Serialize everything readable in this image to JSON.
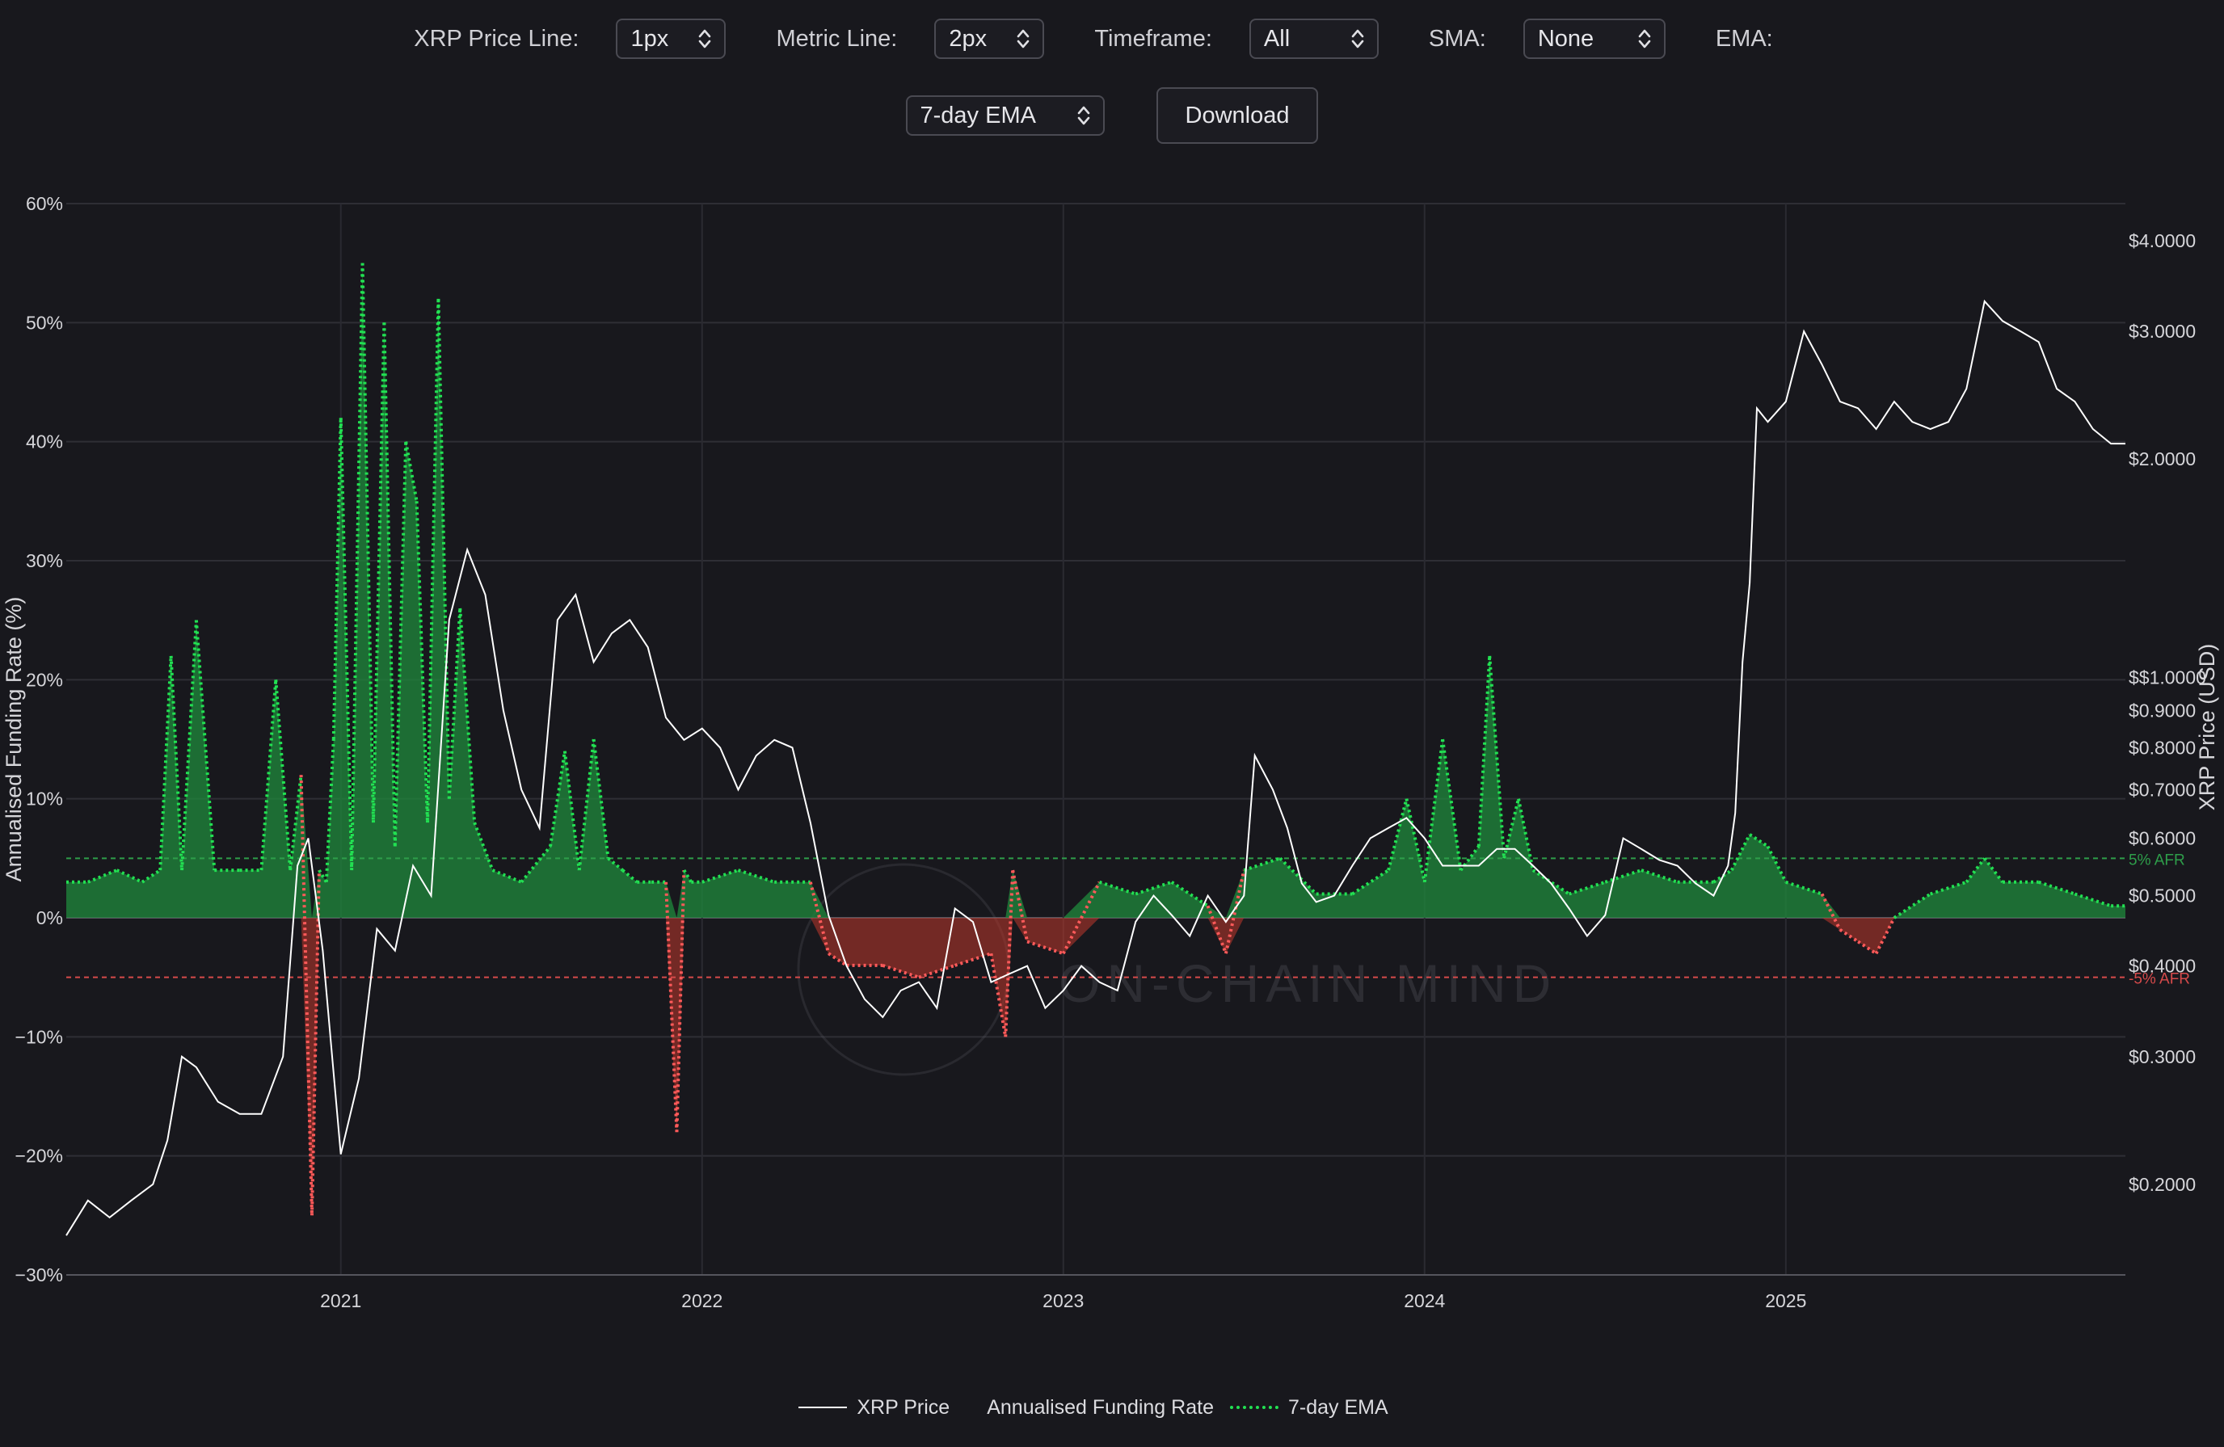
{
  "controls": {
    "price_line": {
      "label": "XRP Price Line:",
      "value": "1px"
    },
    "metric_line": {
      "label": "Metric Line:",
      "value": "2px"
    },
    "timeframe": {
      "label": "Timeframe:",
      "value": "All"
    },
    "sma": {
      "label": "SMA:",
      "value": "None"
    },
    "ema": {
      "label": "EMA:",
      "value": "7-day EMA"
    },
    "download_label": "Download"
  },
  "watermark": "ON-CHAIN MIND",
  "legend": {
    "price": "XRP Price",
    "funding": "Annualised Funding Rate",
    "ema": "7-day EMA"
  },
  "colors": {
    "price": "#ffffff",
    "funding_pos": "#1f8a3c",
    "funding_neg": "#c0392b",
    "ema_pos": "#22e052",
    "ema_neg": "#ff5a5a",
    "ref_pos": "#2e9e4a",
    "ref_neg": "#d64a4a"
  },
  "chart_data": {
    "type": "line",
    "ylabel_left": "Annualised Funding Rate (%)",
    "ylabel_right": "XRP Price (USD)",
    "x_ticks": [
      "2021",
      "2022",
      "2023",
      "2024",
      "2025"
    ],
    "x_range": [
      2020.24,
      2025.94
    ],
    "y_left_range": [
      -30,
      60
    ],
    "y_left_ticks": [
      {
        "v": 60,
        "t": "60%"
      },
      {
        "v": 50,
        "t": "50%"
      },
      {
        "v": 40,
        "t": "40%"
      },
      {
        "v": 30,
        "t": "30%"
      },
      {
        "v": 20,
        "t": "20%"
      },
      {
        "v": 10,
        "t": "10%"
      },
      {
        "v": 0,
        "t": "0%"
      },
      {
        "v": -10,
        "t": "−10%"
      },
      {
        "v": -20,
        "t": "−20%"
      },
      {
        "v": -30,
        "t": "−30%"
      }
    ],
    "y_right_scale": "log",
    "y_right_range": [
      0.15,
      4.5
    ],
    "y_right_ticks": [
      {
        "v": 4.0,
        "t": "$4.0000"
      },
      {
        "v": 3.0,
        "t": "$3.0000"
      },
      {
        "v": 2.0,
        "t": "$2.0000"
      },
      {
        "v": 1.0,
        "t": "$$1.0000"
      },
      {
        "v": 0.9,
        "t": "$0.9000"
      },
      {
        "v": 0.8,
        "t": "$0.8000"
      },
      {
        "v": 0.7,
        "t": "$0.7000"
      },
      {
        "v": 0.6,
        "t": "$0.6000"
      },
      {
        "v": 0.5,
        "t": "$0.5000"
      },
      {
        "v": 0.4,
        "t": "$0.4000"
      },
      {
        "v": 0.3,
        "t": "$0.3000"
      },
      {
        "v": 0.2,
        "t": "$0.2000"
      }
    ],
    "ref_lines": [
      {
        "v": 5,
        "label": "5% AFR"
      },
      {
        "v": -5,
        "label": "-5% AFR"
      }
    ],
    "grid": true,
    "series": [
      {
        "name": "XRP Price",
        "x": [
          2020.24,
          2020.3,
          2020.36,
          2020.42,
          2020.48,
          2020.52,
          2020.56,
          2020.6,
          2020.66,
          2020.72,
          2020.78,
          2020.84,
          2020.88,
          2020.91,
          2020.95,
          2021.0,
          2021.05,
          2021.1,
          2021.15,
          2021.2,
          2021.25,
          2021.3,
          2021.35,
          2021.4,
          2021.45,
          2021.5,
          2021.55,
          2021.6,
          2021.65,
          2021.7,
          2021.75,
          2021.8,
          2021.85,
          2021.9,
          2021.95,
          2022.0,
          2022.05,
          2022.1,
          2022.15,
          2022.2,
          2022.25,
          2022.3,
          2022.35,
          2022.4,
          2022.45,
          2022.5,
          2022.55,
          2022.6,
          2022.65,
          2022.7,
          2022.75,
          2022.8,
          2022.85,
          2022.9,
          2022.95,
          2023.0,
          2023.05,
          2023.1,
          2023.15,
          2023.2,
          2023.25,
          2023.3,
          2023.35,
          2023.4,
          2023.45,
          2023.5,
          2023.53,
          2023.58,
          2023.62,
          2023.66,
          2023.7,
          2023.75,
          2023.8,
          2023.85,
          2023.9,
          2023.95,
          2024.0,
          2024.05,
          2024.1,
          2024.15,
          2024.2,
          2024.25,
          2024.3,
          2024.35,
          2024.4,
          2024.45,
          2024.5,
          2024.55,
          2024.6,
          2024.65,
          2024.7,
          2024.75,
          2024.8,
          2024.84,
          2024.86,
          2024.88,
          2024.9,
          2024.92,
          2024.95,
          2025.0,
          2025.05,
          2025.1,
          2025.15,
          2025.2,
          2025.25,
          2025.3,
          2025.35,
          2025.4,
          2025.45,
          2025.5,
          2025.55,
          2025.6,
          2025.65,
          2025.7,
          2025.75,
          2025.8,
          2025.85,
          2025.9,
          2025.94
        ],
        "values": [
          0.17,
          0.19,
          0.18,
          0.19,
          0.2,
          0.23,
          0.3,
          0.29,
          0.26,
          0.25,
          0.25,
          0.3,
          0.55,
          0.6,
          0.42,
          0.22,
          0.28,
          0.45,
          0.42,
          0.55,
          0.5,
          1.2,
          1.5,
          1.3,
          0.9,
          0.7,
          0.62,
          1.2,
          1.3,
          1.05,
          1.15,
          1.2,
          1.1,
          0.88,
          0.82,
          0.85,
          0.8,
          0.7,
          0.78,
          0.82,
          0.8,
          0.63,
          0.47,
          0.4,
          0.36,
          0.34,
          0.37,
          0.38,
          0.35,
          0.48,
          0.46,
          0.38,
          0.39,
          0.4,
          0.35,
          0.37,
          0.4,
          0.38,
          0.37,
          0.46,
          0.5,
          0.47,
          0.44,
          0.5,
          0.46,
          0.5,
          0.78,
          0.7,
          0.62,
          0.52,
          0.49,
          0.5,
          0.55,
          0.6,
          0.62,
          0.64,
          0.6,
          0.55,
          0.55,
          0.55,
          0.58,
          0.58,
          0.55,
          0.52,
          0.48,
          0.44,
          0.47,
          0.6,
          0.58,
          0.56,
          0.55,
          0.52,
          0.5,
          0.55,
          0.65,
          1.05,
          1.35,
          2.35,
          2.25,
          2.4,
          3.0,
          2.7,
          2.4,
          2.35,
          2.2,
          2.4,
          2.25,
          2.2,
          2.25,
          2.5,
          3.3,
          3.1,
          3.0,
          2.9,
          2.5,
          2.4,
          2.2,
          2.1,
          2.1
        ]
      },
      {
        "name": "7-day EMA",
        "x": [
          2020.24,
          2020.3,
          2020.38,
          2020.45,
          2020.5,
          2020.53,
          2020.56,
          2020.6,
          2020.65,
          2020.72,
          2020.78,
          2020.82,
          2020.86,
          2020.89,
          2020.92,
          2020.94,
          2020.96,
          2020.98,
          2021.0,
          2021.03,
          2021.06,
          2021.09,
          2021.12,
          2021.15,
          2021.18,
          2021.21,
          2021.24,
          2021.27,
          2021.3,
          2021.33,
          2021.37,
          2021.42,
          2021.5,
          2021.58,
          2021.62,
          2021.66,
          2021.7,
          2021.74,
          2021.78,
          2021.82,
          2021.86,
          2021.9,
          2021.93,
          2021.95,
          2021.97,
          2022.0,
          2022.1,
          2022.2,
          2022.3,
          2022.35,
          2022.4,
          2022.5,
          2022.6,
          2022.7,
          2022.8,
          2022.84,
          2022.86,
          2022.9,
          2023.0,
          2023.1,
          2023.2,
          2023.3,
          2023.4,
          2023.45,
          2023.5,
          2023.6,
          2023.7,
          2023.8,
          2023.9,
          2023.95,
          2024.0,
          2024.05,
          2024.1,
          2024.15,
          2024.18,
          2024.22,
          2024.26,
          2024.3,
          2024.4,
          2024.5,
          2024.6,
          2024.7,
          2024.8,
          2024.85,
          2024.9,
          2024.95,
          2025.0,
          2025.1,
          2025.15,
          2025.2,
          2025.25,
          2025.3,
          2025.4,
          2025.5,
          2025.55,
          2025.6,
          2025.7,
          2025.8,
          2025.9,
          2025.94
        ],
        "values": [
          3,
          3,
          4,
          3,
          4,
          22,
          4,
          25,
          4,
          4,
          4,
          20,
          4,
          12,
          -25,
          4,
          3,
          15,
          42,
          4,
          55,
          8,
          50,
          6,
          40,
          35,
          8,
          52,
          10,
          26,
          8,
          4,
          3,
          6,
          14,
          4,
          15,
          5,
          4,
          3,
          3,
          3,
          -18,
          4,
          3,
          3,
          4,
          3,
          3,
          -3,
          -4,
          -4,
          -5,
          -4,
          -3,
          -10,
          4,
          -2,
          -3,
          3,
          2,
          3,
          1,
          -3,
          4,
          5,
          2,
          2,
          4,
          10,
          3,
          15,
          4,
          6,
          22,
          5,
          10,
          4,
          2,
          3,
          4,
          3,
          3,
          4,
          7,
          6,
          3,
          2,
          -1,
          -2,
          -3,
          0,
          2,
          3,
          5,
          3,
          3,
          2,
          1,
          1
        ]
      }
    ]
  }
}
